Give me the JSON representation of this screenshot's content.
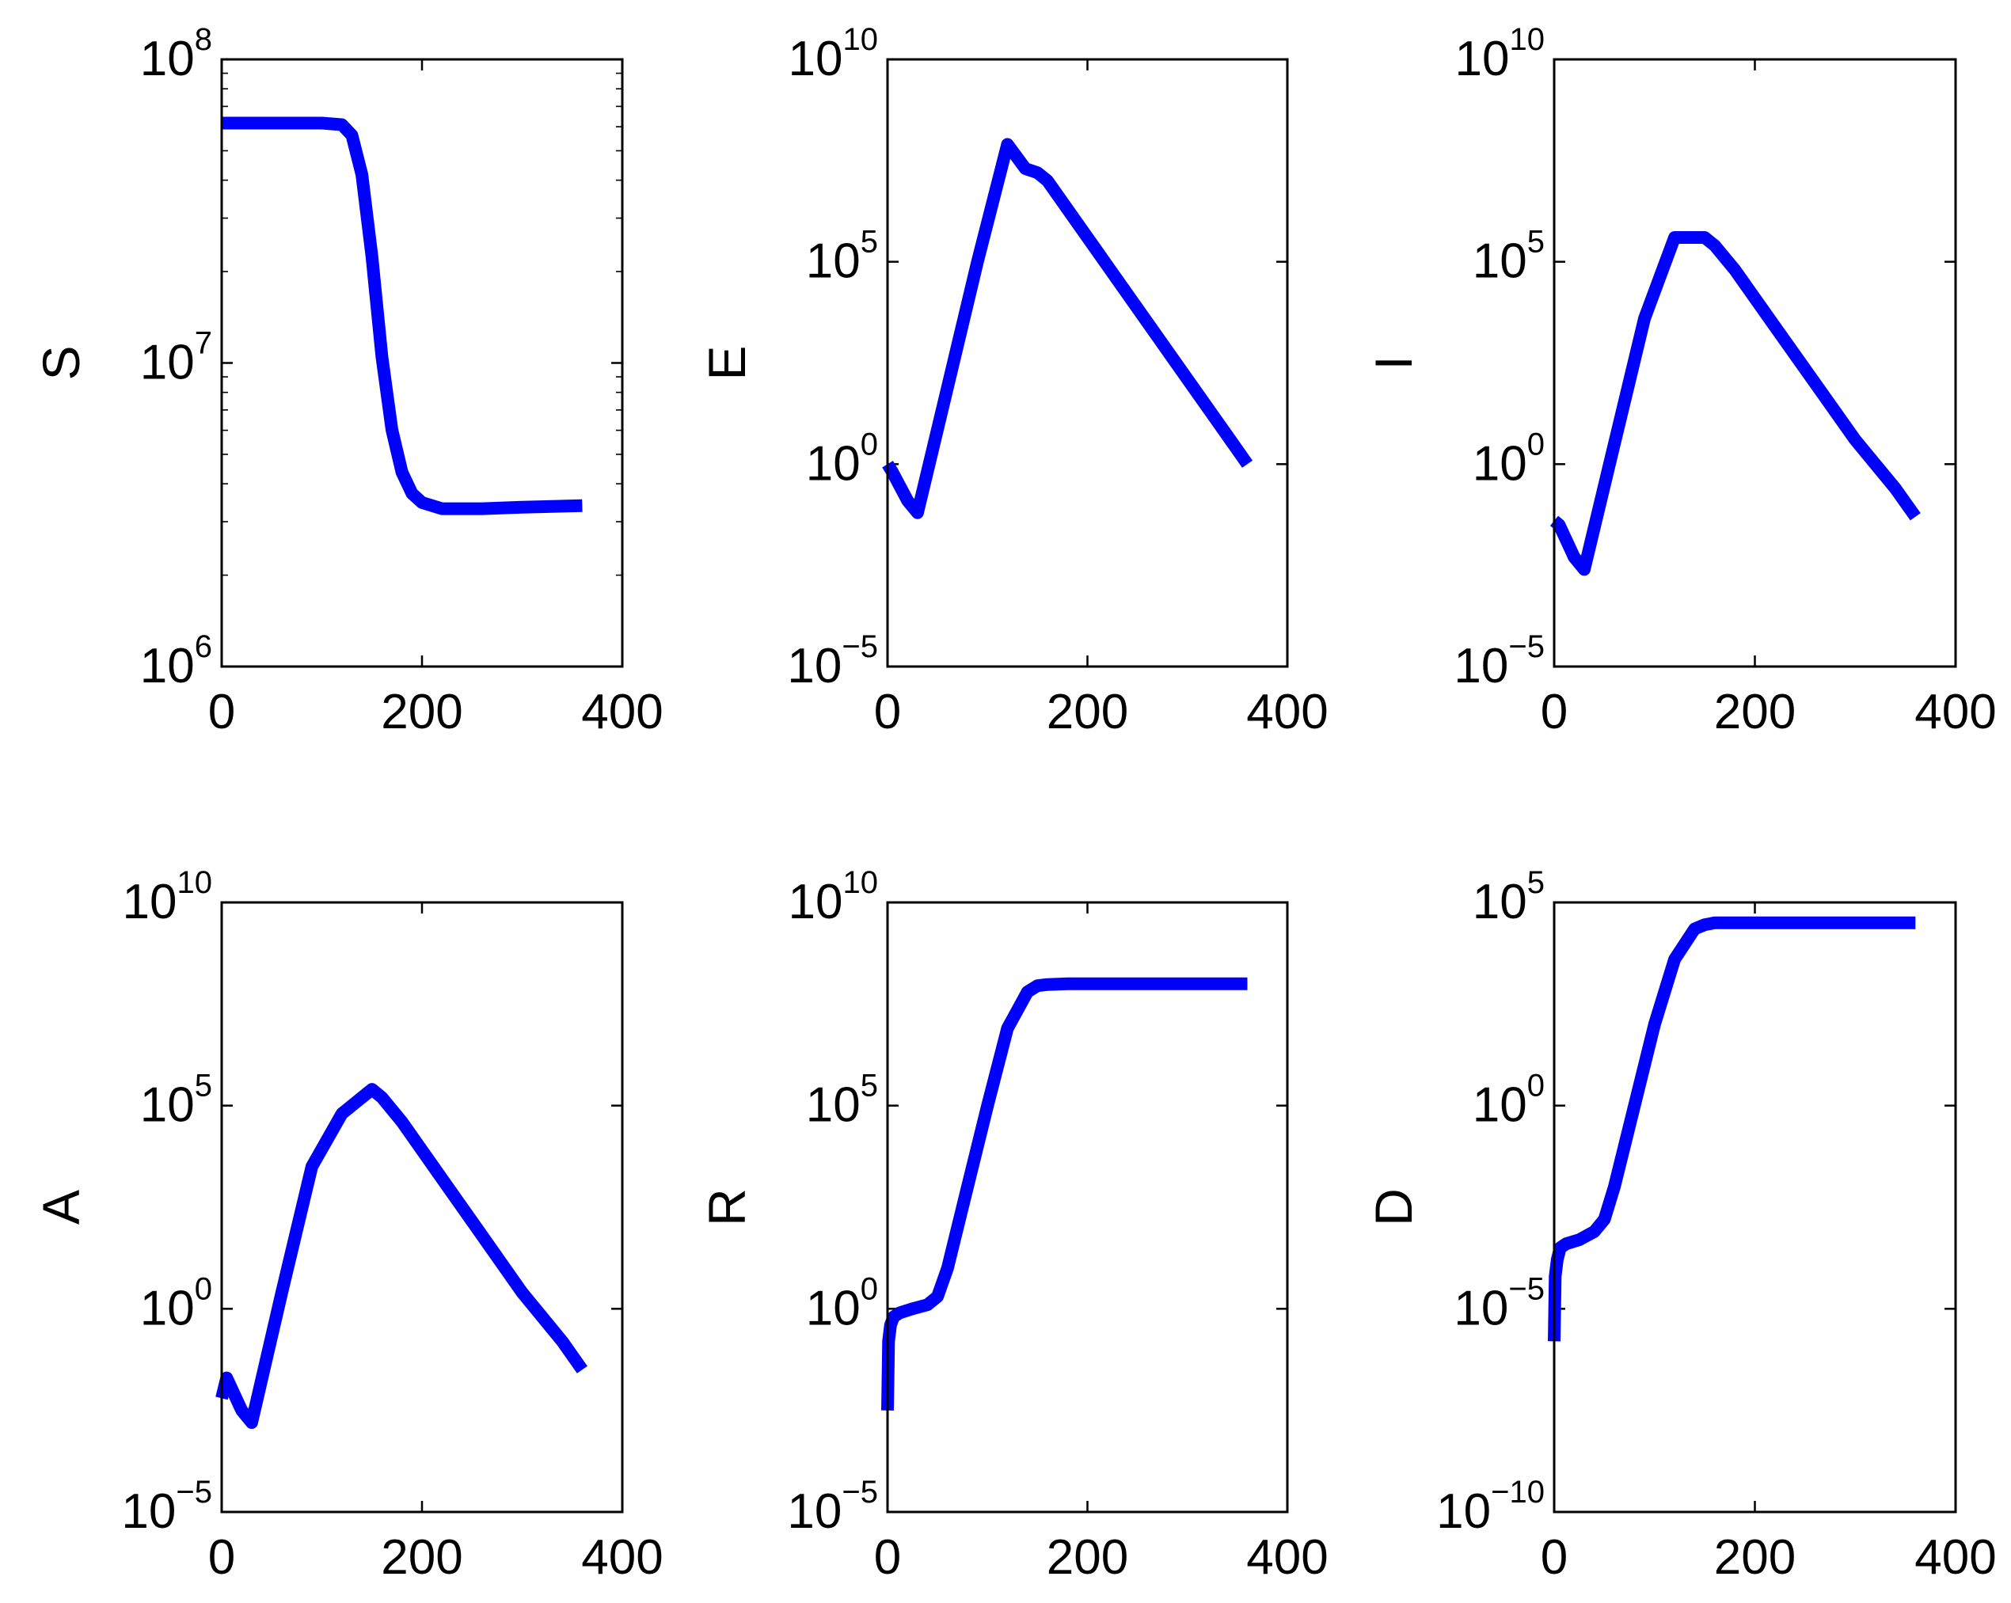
{
  "chart_data": [
    {
      "type": "line",
      "ylabel": "S",
      "yscale": "log",
      "xlim": [
        0,
        400
      ],
      "xticks": [
        "0",
        "200",
        "400"
      ],
      "ylim_exp": [
        6,
        8
      ],
      "yticks": [
        {
          "base": "10",
          "exp": "6"
        },
        {
          "base": "10",
          "exp": "7"
        },
        {
          "base": "10",
          "exp": "8"
        }
      ],
      "color": "#0000ff",
      "series": [
        {
          "x": [
            0,
            60,
            100,
            120,
            130,
            140,
            150,
            160,
            170,
            180,
            190,
            200,
            220,
            260,
            300,
            360
          ],
          "log10y": [
            7.79,
            7.79,
            7.79,
            7.785,
            7.75,
            7.62,
            7.35,
            7.02,
            6.78,
            6.64,
            6.57,
            6.54,
            6.52,
            6.52,
            6.525,
            6.53
          ]
        }
      ]
    },
    {
      "type": "line",
      "ylabel": "E",
      "yscale": "log",
      "xlim": [
        0,
        400
      ],
      "xticks": [
        "0",
        "200",
        "400"
      ],
      "ylim_exp": [
        -5,
        10
      ],
      "yticks": [
        {
          "base": "10",
          "exp": "−5"
        },
        {
          "base": "10",
          "exp": "0"
        },
        {
          "base": "10",
          "exp": "5"
        },
        {
          "base": "10",
          "exp": "10"
        }
      ],
      "color": "#0000ff",
      "series": [
        {
          "x": [
            0,
            5,
            20,
            30,
            60,
            90,
            120,
            138,
            150,
            160,
            180,
            220,
            260,
            300,
            340,
            360
          ],
          "log10y": [
            0,
            -0.2,
            -0.9,
            -1.2,
            1.9,
            5.0,
            7.9,
            7.3,
            7.2,
            7.0,
            6.3,
            4.9,
            3.5,
            2.1,
            0.7,
            0.0
          ]
        }
      ]
    },
    {
      "type": "line",
      "ylabel": "I",
      "yscale": "log",
      "xlim": [
        0,
        400
      ],
      "xticks": [
        "0",
        "200",
        "400"
      ],
      "ylim_exp": [
        -5,
        10
      ],
      "yticks": [
        {
          "base": "10",
          "exp": "−5"
        },
        {
          "base": "10",
          "exp": "0"
        },
        {
          "base": "10",
          "exp": "5"
        },
        {
          "base": "10",
          "exp": "10"
        }
      ],
      "color": "#0000ff",
      "series": [
        {
          "x": [
            0,
            5,
            20,
            30,
            60,
            90,
            120,
            140,
            150,
            160,
            180,
            220,
            260,
            300,
            340,
            360
          ],
          "log10y": [
            -1.4,
            -1.5,
            -2.3,
            -2.6,
            0.5,
            3.6,
            5.6,
            5.6,
            5.6,
            5.4,
            4.8,
            3.4,
            2.0,
            0.6,
            -0.6,
            -1.3
          ]
        }
      ]
    },
    {
      "type": "line",
      "ylabel": "A",
      "yscale": "log",
      "xlim": [
        0,
        400
      ],
      "xticks": [
        "0",
        "200",
        "400"
      ],
      "ylim_exp": [
        -5,
        10
      ],
      "yticks": [
        {
          "base": "10",
          "exp": "−5"
        },
        {
          "base": "10",
          "exp": "0"
        },
        {
          "base": "10",
          "exp": "5"
        },
        {
          "base": "10",
          "exp": "10"
        }
      ],
      "color": "#0000ff",
      "series": [
        {
          "x": [
            0,
            5,
            20,
            30,
            60,
            90,
            120,
            140,
            150,
            160,
            180,
            220,
            260,
            300,
            340,
            360
          ],
          "log10y": [
            -2.2,
            -1.7,
            -2.5,
            -2.8,
            0.4,
            3.5,
            4.8,
            5.2,
            5.4,
            5.2,
            4.6,
            3.2,
            1.8,
            0.4,
            -0.8,
            -1.5
          ]
        }
      ]
    },
    {
      "type": "line",
      "ylabel": "R",
      "yscale": "log",
      "xlim": [
        0,
        400
      ],
      "xticks": [
        "0",
        "200",
        "400"
      ],
      "ylim_exp": [
        -5,
        10
      ],
      "yticks": [
        {
          "base": "10",
          "exp": "−5"
        },
        {
          "base": "10",
          "exp": "0"
        },
        {
          "base": "10",
          "exp": "5"
        },
        {
          "base": "10",
          "exp": "10"
        }
      ],
      "color": "#0000ff",
      "series": [
        {
          "x": [
            0,
            1,
            3,
            6,
            12,
            25,
            40,
            50,
            60,
            80,
            100,
            120,
            140,
            150,
            160,
            180,
            220,
            300,
            360
          ],
          "log10y": [
            -2.5,
            -0.8,
            -0.4,
            -0.2,
            -0.1,
            0.0,
            0.1,
            0.3,
            1.0,
            3.0,
            5.0,
            6.9,
            7.8,
            7.95,
            7.98,
            8.0,
            8.0,
            8.0,
            8.0
          ]
        }
      ]
    },
    {
      "type": "line",
      "ylabel": "D",
      "yscale": "log",
      "xlim": [
        0,
        400
      ],
      "xticks": [
        "0",
        "200",
        "400"
      ],
      "ylim_exp": [
        -10,
        5
      ],
      "yticks": [
        {
          "base": "10",
          "exp": "−10"
        },
        {
          "base": "10",
          "exp": "−5"
        },
        {
          "base": "10",
          "exp": "0"
        },
        {
          "base": "10",
          "exp": "5"
        }
      ],
      "color": "#0000ff",
      "series": [
        {
          "x": [
            0,
            1,
            3,
            6,
            12,
            25,
            40,
            50,
            60,
            80,
            100,
            120,
            140,
            150,
            160,
            180,
            220,
            300,
            360
          ],
          "log10y": [
            -5.8,
            -4.2,
            -3.8,
            -3.5,
            -3.4,
            -3.3,
            -3.1,
            -2.8,
            -2.0,
            0.0,
            2.0,
            3.6,
            4.35,
            4.45,
            4.5,
            4.5,
            4.5,
            4.5,
            4.5
          ]
        }
      ]
    }
  ]
}
